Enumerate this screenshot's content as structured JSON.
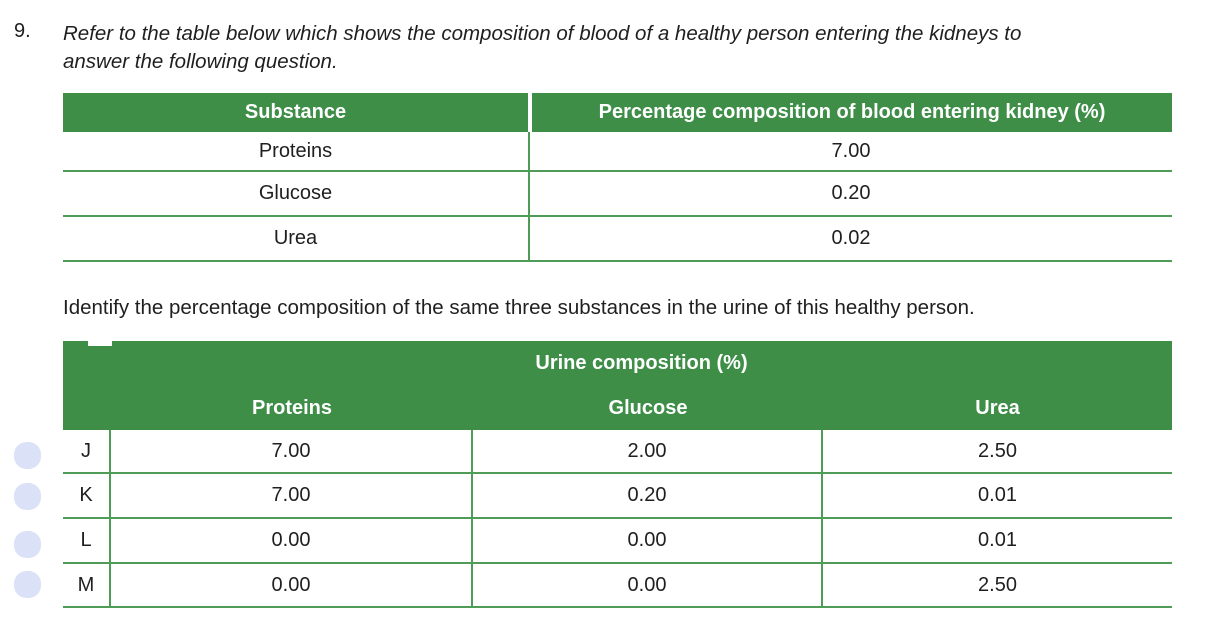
{
  "colors": {
    "header_green": "#3e8e48",
    "grid_green": "#4f9c58",
    "bubble_lavender": "#dbe2f7"
  },
  "question": {
    "number": "9.",
    "intro_line1": "Refer to the table below which shows the composition of blood of a healthy person entering the kidneys to",
    "intro_line2": "answer the following question.",
    "prompt": "Identify the percentage composition of the same three substances in the urine of this healthy person."
  },
  "blood_table": {
    "col_headers": [
      "Substance",
      "Percentage composition of blood entering kidney (%)"
    ],
    "rows": [
      {
        "substance": "Proteins",
        "value": "7.00"
      },
      {
        "substance": "Glucose",
        "value": "0.20"
      },
      {
        "substance": "Urea",
        "value": "0.02"
      }
    ]
  },
  "urine_table": {
    "title": "Urine composition (%)",
    "col_headers": [
      "Proteins",
      "Glucose",
      "Urea"
    ],
    "options": [
      {
        "label": "J",
        "values": [
          "7.00",
          "2.00",
          "2.50"
        ]
      },
      {
        "label": "K",
        "values": [
          "7.00",
          "0.20",
          "0.01"
        ]
      },
      {
        "label": "L",
        "values": [
          "0.00",
          "0.00",
          "0.01"
        ]
      },
      {
        "label": "M",
        "values": [
          "0.00",
          "0.00",
          "2.50"
        ]
      }
    ]
  }
}
